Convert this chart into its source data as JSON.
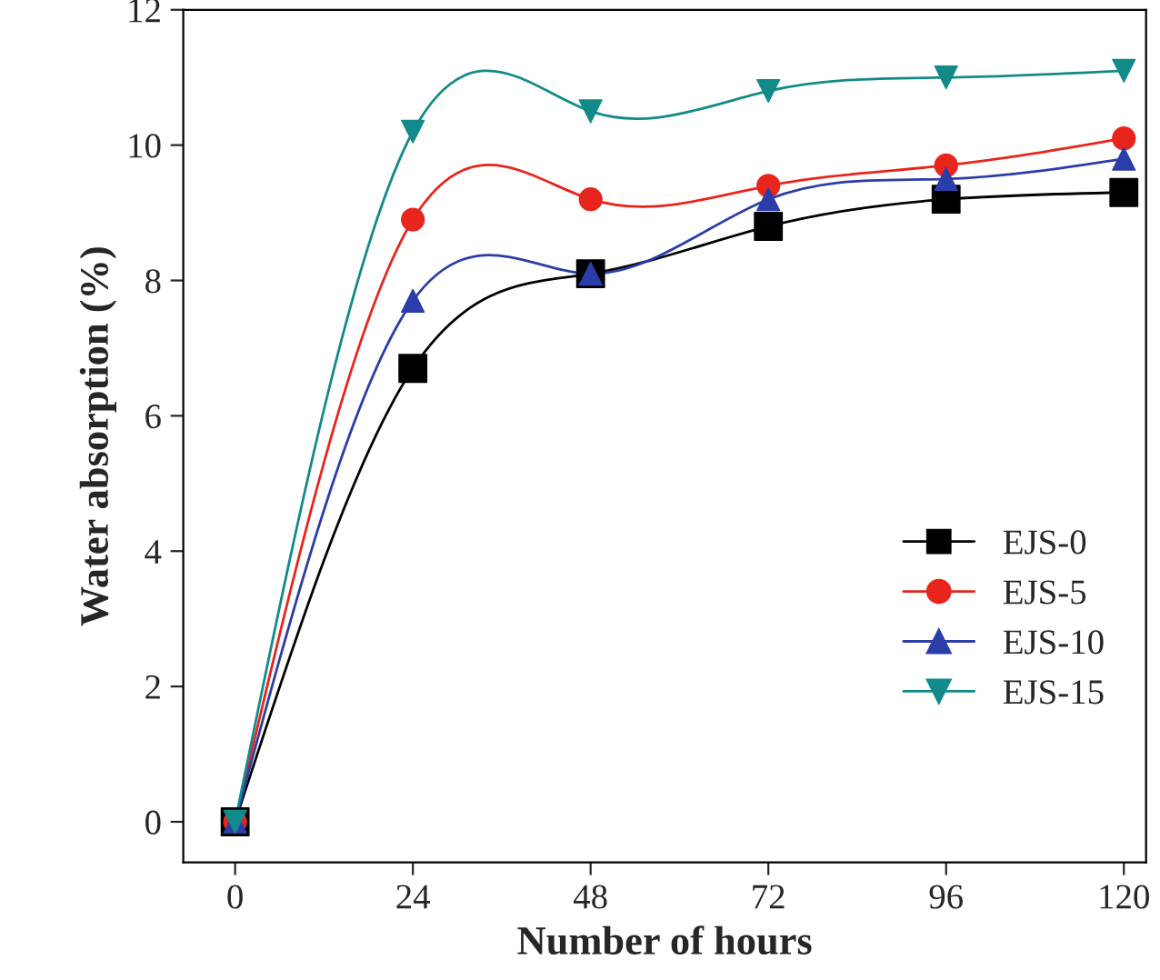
{
  "chart_data": {
    "type": "line",
    "xlabel": "Number of hours",
    "ylabel": "Water absorption (%)",
    "x": [
      0,
      24,
      48,
      72,
      96,
      120
    ],
    "series": [
      {
        "name": "EJS-0",
        "color": "#000000",
        "marker": "square",
        "values": [
          0,
          6.7,
          8.1,
          8.8,
          9.2,
          9.3
        ]
      },
      {
        "name": "EJS-5",
        "color": "#e8251c",
        "marker": "circle",
        "values": [
          0,
          8.9,
          9.2,
          9.4,
          9.7,
          10.1
        ]
      },
      {
        "name": "EJS-10",
        "color": "#2b3da8",
        "marker": "triangle",
        "values": [
          0,
          7.7,
          8.1,
          9.2,
          9.5,
          9.8
        ]
      },
      {
        "name": "EJS-15",
        "color": "#138a8a",
        "marker": "triangle_down",
        "values": [
          0,
          10.2,
          10.5,
          10.8,
          11.0,
          11.1
        ]
      }
    ],
    "xlim": [
      -7,
      123
    ],
    "xticks": [
      0,
      24,
      48,
      72,
      96,
      120
    ],
    "ylim": [
      -0.6,
      12
    ],
    "yticks": [
      0,
      2,
      4,
      6,
      8,
      10,
      12
    ],
    "grid": false,
    "legend": "lower right",
    "line_style": "solid"
  }
}
